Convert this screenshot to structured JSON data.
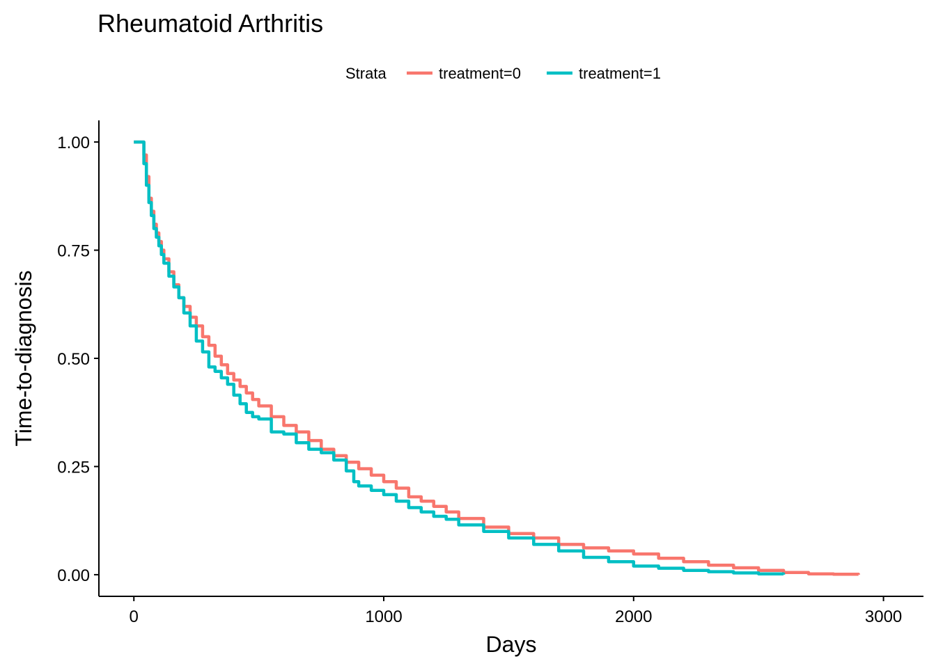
{
  "chart_data": {
    "type": "line",
    "step": true,
    "title": "Rheumatoid Arthritis",
    "xlabel": "Days",
    "ylabel": "Time-to-diagnosis",
    "xlim": [
      -140,
      3160
    ],
    "ylim": [
      -0.05,
      1.05
    ],
    "x_ticks": [
      0,
      1000,
      2000,
      3000
    ],
    "x_tick_labels": [
      "0",
      "1000",
      "2000",
      "3000"
    ],
    "y_ticks": [
      0,
      0.25,
      0.5,
      0.75,
      1.0
    ],
    "y_tick_labels": [
      "0.00",
      "0.25",
      "0.50",
      "0.75",
      "1.00"
    ],
    "grid": false,
    "legend": {
      "title": "Strata",
      "position": "top"
    },
    "series": [
      {
        "name": "treatment=0",
        "color": "#F8766D",
        "x": [
          0,
          30,
          40,
          50,
          60,
          70,
          80,
          90,
          100,
          110,
          120,
          140,
          160,
          180,
          200,
          225,
          250,
          275,
          300,
          325,
          350,
          375,
          400,
          425,
          450,
          475,
          500,
          550,
          600,
          650,
          700,
          750,
          800,
          850,
          900,
          950,
          1000,
          1050,
          1100,
          1150,
          1200,
          1250,
          1300,
          1400,
          1500,
          1600,
          1700,
          1800,
          1900,
          2000,
          2100,
          2200,
          2300,
          2400,
          2500,
          2600,
          2700,
          2800,
          2900
        ],
        "y": [
          1.0,
          1.0,
          0.97,
          0.92,
          0.87,
          0.84,
          0.81,
          0.79,
          0.77,
          0.75,
          0.73,
          0.7,
          0.67,
          0.64,
          0.62,
          0.595,
          0.575,
          0.55,
          0.53,
          0.505,
          0.485,
          0.465,
          0.45,
          0.435,
          0.42,
          0.405,
          0.39,
          0.365,
          0.345,
          0.33,
          0.31,
          0.29,
          0.275,
          0.26,
          0.245,
          0.23,
          0.215,
          0.2,
          0.18,
          0.17,
          0.158,
          0.145,
          0.13,
          0.11,
          0.095,
          0.085,
          0.07,
          0.062,
          0.055,
          0.048,
          0.038,
          0.03,
          0.022,
          0.016,
          0.01,
          0.005,
          0.002,
          0.001,
          0.0
        ]
      },
      {
        "name": "treatment=1",
        "color": "#00BFC4",
        "x": [
          0,
          30,
          40,
          50,
          60,
          70,
          80,
          90,
          100,
          110,
          120,
          140,
          160,
          180,
          200,
          225,
          250,
          275,
          300,
          325,
          350,
          375,
          400,
          425,
          450,
          475,
          500,
          550,
          600,
          650,
          700,
          750,
          800,
          850,
          880,
          900,
          950,
          1000,
          1050,
          1100,
          1150,
          1200,
          1250,
          1300,
          1400,
          1500,
          1600,
          1700,
          1800,
          1900,
          2000,
          2100,
          2200,
          2300,
          2400,
          2500,
          2600
        ],
        "y": [
          1.0,
          1.0,
          0.95,
          0.9,
          0.86,
          0.83,
          0.8,
          0.78,
          0.76,
          0.74,
          0.72,
          0.69,
          0.665,
          0.64,
          0.605,
          0.575,
          0.54,
          0.515,
          0.48,
          0.47,
          0.455,
          0.44,
          0.415,
          0.395,
          0.375,
          0.365,
          0.36,
          0.33,
          0.325,
          0.305,
          0.29,
          0.282,
          0.265,
          0.24,
          0.215,
          0.205,
          0.195,
          0.185,
          0.17,
          0.155,
          0.145,
          0.135,
          0.128,
          0.115,
          0.1,
          0.085,
          0.07,
          0.055,
          0.04,
          0.03,
          0.02,
          0.015,
          0.01,
          0.007,
          0.004,
          0.002,
          0.0
        ]
      }
    ]
  }
}
